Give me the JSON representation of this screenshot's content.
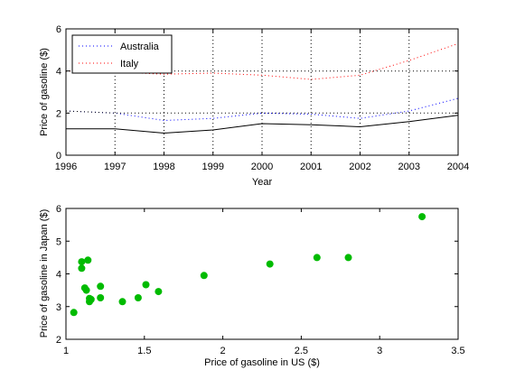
{
  "chart_data": [
    {
      "type": "line",
      "xlabel": "Year",
      "ylabel": "Price of gasoline ($)",
      "xlim": [
        1996,
        2004
      ],
      "ylim": [
        0,
        6
      ],
      "xticks": [
        "1996",
        "1997",
        "1998",
        "1999",
        "2000",
        "2001",
        "2002",
        "2003",
        "2004"
      ],
      "yticks": [
        "0",
        "2",
        "4",
        "6"
      ],
      "grid": "x-only",
      "legend_position": "top-left",
      "x": [
        1996,
        1997,
        1998,
        1999,
        2000,
        2001,
        2002,
        2003,
        2004
      ],
      "series": [
        {
          "name": "Australia",
          "color": "#0000ff",
          "style": "dotted",
          "values": [
            2.1,
            2.0,
            1.65,
            1.75,
            2.0,
            1.95,
            1.75,
            2.1,
            2.7
          ],
          "in_legend": true
        },
        {
          "name": "Italy",
          "color": "#ff0000",
          "style": "dotted",
          "values": [
            4.0,
            3.95,
            3.85,
            3.9,
            3.8,
            3.6,
            3.8,
            4.5,
            5.3
          ],
          "in_legend": true
        },
        {
          "color": "#000000",
          "style": "dotted",
          "values": [
            4.0,
            4.0,
            4.0,
            4.0,
            4.0,
            4.0,
            4.0,
            4.0,
            4.0
          ],
          "in_legend": false
        },
        {
          "color": "#000000",
          "style": "dotted",
          "values": [
            2.1,
            2.0,
            2.0,
            2.0,
            2.0,
            2.0,
            2.0,
            2.0,
            2.0
          ],
          "in_legend": false
        },
        {
          "color": "#000000",
          "style": "solid",
          "values": [
            1.25,
            1.25,
            1.05,
            1.2,
            1.5,
            1.45,
            1.35,
            1.6,
            1.9
          ],
          "in_legend": false
        }
      ]
    },
    {
      "type": "scatter",
      "xlabel": "Price of gasoline in US ($)",
      "ylabel": "Price of gasoline in Japan ($)",
      "xlim": [
        1,
        3.5
      ],
      "ylim": [
        2,
        6
      ],
      "xticks": [
        "1",
        "1.5",
        "2",
        "2.5",
        "3",
        "3.5"
      ],
      "yticks": [
        "2",
        "3",
        "4",
        "5",
        "6"
      ],
      "grid": "off",
      "color": "#00bb00",
      "points": [
        {
          "x": 1.05,
          "y": 2.82
        },
        {
          "x": 1.1,
          "y": 4.37
        },
        {
          "x": 1.1,
          "y": 4.17
        },
        {
          "x": 1.14,
          "y": 4.42
        },
        {
          "x": 1.12,
          "y": 3.57
        },
        {
          "x": 1.13,
          "y": 3.5
        },
        {
          "x": 1.15,
          "y": 3.25
        },
        {
          "x": 1.15,
          "y": 3.15
        },
        {
          "x": 1.16,
          "y": 3.22
        },
        {
          "x": 1.22,
          "y": 3.62
        },
        {
          "x": 1.22,
          "y": 3.27
        },
        {
          "x": 1.36,
          "y": 3.15
        },
        {
          "x": 1.46,
          "y": 3.27
        },
        {
          "x": 1.51,
          "y": 3.67
        },
        {
          "x": 1.59,
          "y": 3.46
        },
        {
          "x": 1.88,
          "y": 3.95
        },
        {
          "x": 2.3,
          "y": 4.3
        },
        {
          "x": 2.6,
          "y": 4.5
        },
        {
          "x": 2.8,
          "y": 4.5
        },
        {
          "x": 3.27,
          "y": 5.75
        }
      ]
    }
  ]
}
